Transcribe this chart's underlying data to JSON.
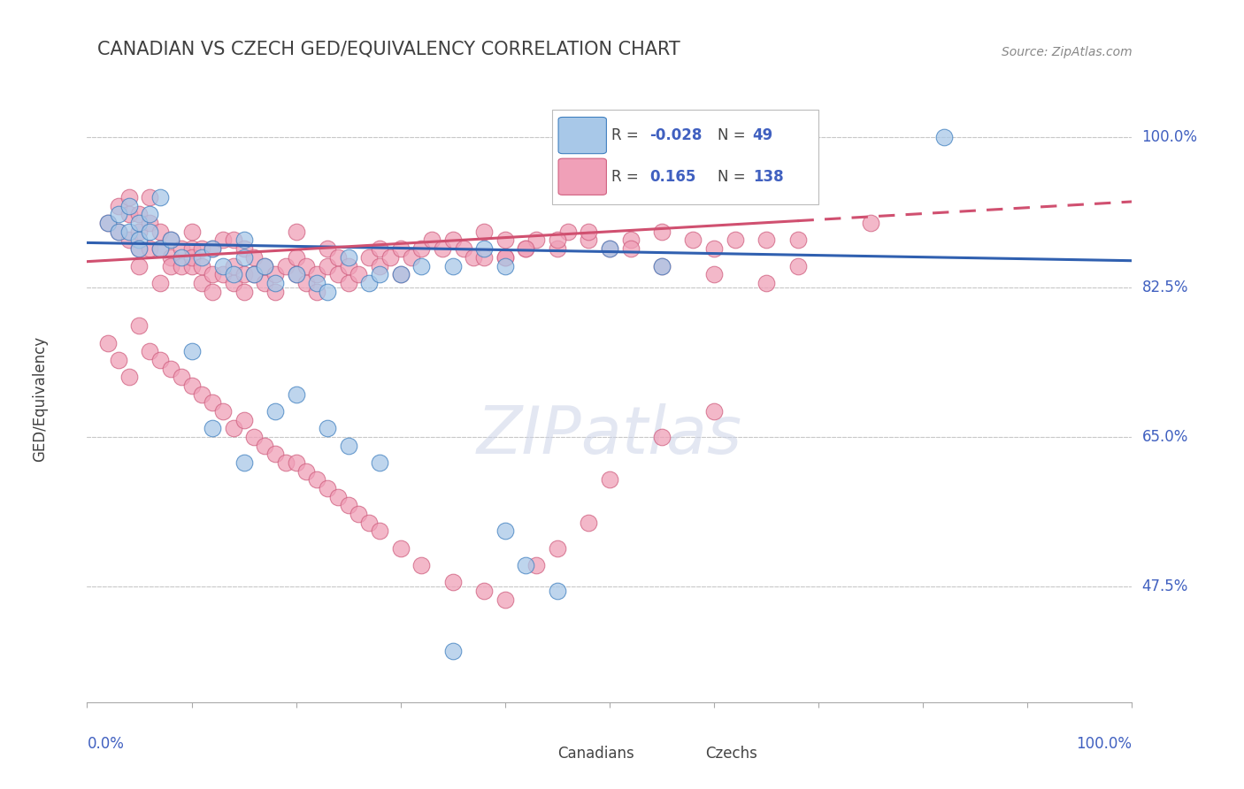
{
  "title": "CANADIAN VS CZECH GED/EQUIVALENCY CORRELATION CHART",
  "source_text": "Source: ZipAtlas.com",
  "ylabel": "GED/Equivalency",
  "watermark": "ZIPatlas",
  "r_canadian": -0.028,
  "n_canadian": 49,
  "r_czech": 0.165,
  "n_czech": 138,
  "ytick_labels": [
    "100.0%",
    "82.5%",
    "65.0%",
    "47.5%"
  ],
  "ytick_values": [
    1.0,
    0.825,
    0.65,
    0.475
  ],
  "xmin": 0.0,
  "xmax": 1.0,
  "ymin": 0.34,
  "ymax": 1.05,
  "blue_fill": "#a8c8e8",
  "blue_edge": "#4080c0",
  "pink_fill": "#f0a0b8",
  "pink_edge": "#d06080",
  "blue_line": "#3060b0",
  "pink_line": "#d05070",
  "title_color": "#404040",
  "axis_blue": "#4060c0",
  "grid_color": "#c8c8c8",
  "canadians_x": [
    0.02,
    0.03,
    0.03,
    0.04,
    0.04,
    0.05,
    0.05,
    0.05,
    0.06,
    0.06,
    0.07,
    0.07,
    0.08,
    0.09,
    0.1,
    0.11,
    0.12,
    0.13,
    0.14,
    0.15,
    0.15,
    0.16,
    0.17,
    0.18,
    0.2,
    0.22,
    0.23,
    0.25,
    0.27,
    0.28,
    0.3,
    0.32,
    0.35,
    0.12,
    0.15,
    0.18,
    0.2,
    0.23,
    0.25,
    0.28,
    0.38,
    0.4,
    0.4,
    0.42,
    0.45,
    0.5,
    0.55,
    0.35,
    0.82
  ],
  "canadians_y": [
    0.9,
    0.89,
    0.91,
    0.89,
    0.92,
    0.88,
    0.9,
    0.87,
    0.91,
    0.89,
    0.93,
    0.87,
    0.88,
    0.86,
    0.75,
    0.86,
    0.87,
    0.85,
    0.84,
    0.88,
    0.86,
    0.84,
    0.85,
    0.83,
    0.84,
    0.83,
    0.82,
    0.86,
    0.83,
    0.84,
    0.84,
    0.85,
    0.85,
    0.66,
    0.62,
    0.68,
    0.7,
    0.66,
    0.64,
    0.62,
    0.87,
    0.85,
    0.54,
    0.5,
    0.47,
    0.87,
    0.85,
    0.4,
    1.0
  ],
  "czechs_x": [
    0.02,
    0.03,
    0.03,
    0.04,
    0.04,
    0.04,
    0.05,
    0.05,
    0.05,
    0.05,
    0.06,
    0.06,
    0.06,
    0.07,
    0.07,
    0.07,
    0.08,
    0.08,
    0.08,
    0.09,
    0.09,
    0.1,
    0.1,
    0.1,
    0.1,
    0.11,
    0.11,
    0.11,
    0.12,
    0.12,
    0.12,
    0.13,
    0.13,
    0.14,
    0.14,
    0.14,
    0.15,
    0.15,
    0.15,
    0.16,
    0.16,
    0.17,
    0.17,
    0.18,
    0.18,
    0.19,
    0.2,
    0.2,
    0.2,
    0.21,
    0.21,
    0.22,
    0.22,
    0.23,
    0.23,
    0.24,
    0.24,
    0.25,
    0.25,
    0.26,
    0.27,
    0.28,
    0.28,
    0.29,
    0.3,
    0.3,
    0.31,
    0.32,
    0.33,
    0.34,
    0.35,
    0.36,
    0.37,
    0.38,
    0.38,
    0.4,
    0.4,
    0.42,
    0.43,
    0.45,
    0.46,
    0.48,
    0.5,
    0.52,
    0.55,
    0.58,
    0.6,
    0.62,
    0.65,
    0.68,
    0.02,
    0.03,
    0.04,
    0.05,
    0.06,
    0.07,
    0.08,
    0.09,
    0.1,
    0.11,
    0.12,
    0.13,
    0.14,
    0.15,
    0.16,
    0.17,
    0.18,
    0.19,
    0.2,
    0.21,
    0.22,
    0.23,
    0.24,
    0.25,
    0.26,
    0.27,
    0.28,
    0.3,
    0.32,
    0.35,
    0.38,
    0.4,
    0.43,
    0.45,
    0.48,
    0.5,
    0.55,
    0.6,
    0.4,
    0.42,
    0.45,
    0.48,
    0.52,
    0.55,
    0.6,
    0.65,
    0.68,
    0.75
  ],
  "czechs_y": [
    0.9,
    0.92,
    0.89,
    0.91,
    0.88,
    0.93,
    0.89,
    0.87,
    0.91,
    0.85,
    0.9,
    0.87,
    0.93,
    0.89,
    0.83,
    0.87,
    0.86,
    0.85,
    0.88,
    0.85,
    0.87,
    0.87,
    0.85,
    0.89,
    0.86,
    0.83,
    0.87,
    0.85,
    0.84,
    0.82,
    0.87,
    0.84,
    0.88,
    0.83,
    0.85,
    0.88,
    0.84,
    0.82,
    0.87,
    0.84,
    0.86,
    0.85,
    0.83,
    0.84,
    0.82,
    0.85,
    0.86,
    0.84,
    0.89,
    0.85,
    0.83,
    0.84,
    0.82,
    0.85,
    0.87,
    0.86,
    0.84,
    0.85,
    0.83,
    0.84,
    0.86,
    0.85,
    0.87,
    0.86,
    0.84,
    0.87,
    0.86,
    0.87,
    0.88,
    0.87,
    0.88,
    0.87,
    0.86,
    0.89,
    0.86,
    0.88,
    0.86,
    0.87,
    0.88,
    0.87,
    0.89,
    0.88,
    0.87,
    0.88,
    0.89,
    0.88,
    0.87,
    0.88,
    0.88,
    0.88,
    0.76,
    0.74,
    0.72,
    0.78,
    0.75,
    0.74,
    0.73,
    0.72,
    0.71,
    0.7,
    0.69,
    0.68,
    0.66,
    0.67,
    0.65,
    0.64,
    0.63,
    0.62,
    0.62,
    0.61,
    0.6,
    0.59,
    0.58,
    0.57,
    0.56,
    0.55,
    0.54,
    0.52,
    0.5,
    0.48,
    0.47,
    0.46,
    0.5,
    0.52,
    0.55,
    0.6,
    0.65,
    0.68,
    0.86,
    0.87,
    0.88,
    0.89,
    0.87,
    0.85,
    0.84,
    0.83,
    0.85,
    0.9
  ]
}
